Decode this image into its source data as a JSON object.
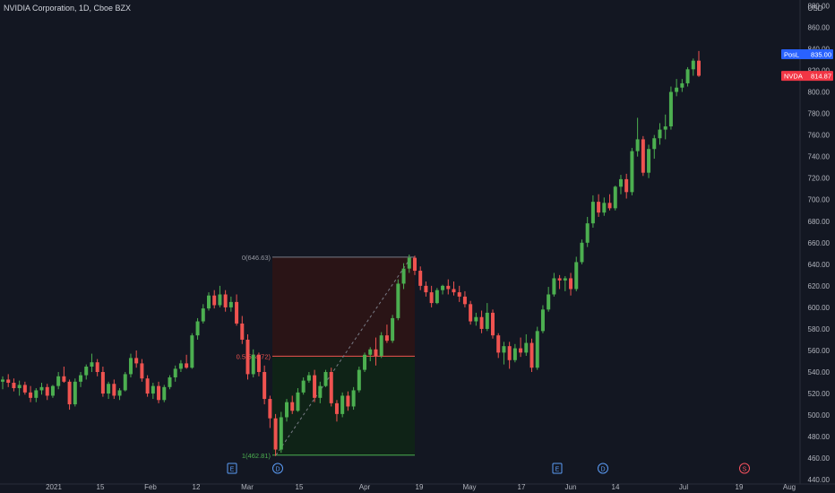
{
  "header": {
    "title": "NVIDIA Corporation, 1D, Cboe BZX",
    "currency": "USD"
  },
  "colors": {
    "background": "#131722",
    "up": "#26a69a",
    "up_body": "#4caf50",
    "down": "#ef5350",
    "text": "#b2b5be",
    "axis_line": "#2a2e39",
    "pos_label": "#2962ff",
    "last_label": "#f23645",
    "fib_line": "#787b86"
  },
  "chart_data": {
    "type": "candlestick",
    "symbol": "NVDA",
    "y_ticks": [
      880,
      860,
      840,
      820,
      800,
      780,
      760,
      740,
      720,
      700,
      680,
      660,
      640,
      620,
      600,
      580,
      560,
      540,
      520,
      500,
      480,
      460,
      440
    ],
    "ylim": [
      436,
      882
    ],
    "x_ticks": [
      "2021",
      "15",
      "Feb",
      "12",
      "Mar",
      "15",
      "Apr",
      "19",
      "May",
      "17",
      "Jun",
      "14",
      "Jul",
      "19",
      "Aug"
    ],
    "price_labels": [
      {
        "label": "PosL",
        "value": 835.0,
        "text": "835.00",
        "color": "#2962ff"
      },
      {
        "label": "NVDA",
        "value": 814.87,
        "text": "814.87",
        "color": "#f23645"
      }
    ],
    "position_tool": {
      "top": {
        "value": 646.63,
        "label": "0(646.63)"
      },
      "mid": {
        "value": 554.72,
        "label": "0.5(554.72)"
      },
      "bottom": {
        "value": 462.81,
        "label": "1(462.81)"
      }
    },
    "event_markers": [
      {
        "symbol": "E",
        "kind": "earnings"
      },
      {
        "symbol": "D",
        "kind": "dividend"
      },
      {
        "symbol": "E",
        "kind": "earnings"
      },
      {
        "symbol": "D",
        "kind": "dividend"
      },
      {
        "symbol": "S",
        "kind": "split"
      }
    ],
    "candles": [
      {
        "o": 531,
        "h": 536,
        "l": 524,
        "c": 533
      },
      {
        "o": 533,
        "h": 538,
        "l": 526,
        "c": 530
      },
      {
        "o": 530,
        "h": 534,
        "l": 522,
        "c": 525
      },
      {
        "o": 525,
        "h": 532,
        "l": 518,
        "c": 528
      },
      {
        "o": 528,
        "h": 531,
        "l": 519,
        "c": 521
      },
      {
        "o": 521,
        "h": 527,
        "l": 512,
        "c": 516
      },
      {
        "o": 516,
        "h": 525,
        "l": 512,
        "c": 523
      },
      {
        "o": 523,
        "h": 530,
        "l": 519,
        "c": 526
      },
      {
        "o": 526,
        "h": 529,
        "l": 514,
        "c": 518
      },
      {
        "o": 518,
        "h": 528,
        "l": 516,
        "c": 527
      },
      {
        "o": 527,
        "h": 540,
        "l": 524,
        "c": 536
      },
      {
        "o": 536,
        "h": 545,
        "l": 530,
        "c": 531
      },
      {
        "o": 531,
        "h": 533,
        "l": 505,
        "c": 510
      },
      {
        "o": 510,
        "h": 534,
        "l": 508,
        "c": 531
      },
      {
        "o": 531,
        "h": 540,
        "l": 526,
        "c": 537
      },
      {
        "o": 537,
        "h": 547,
        "l": 533,
        "c": 545
      },
      {
        "o": 545,
        "h": 557,
        "l": 540,
        "c": 549
      },
      {
        "o": 549,
        "h": 552,
        "l": 536,
        "c": 540
      },
      {
        "o": 540,
        "h": 545,
        "l": 517,
        "c": 520
      },
      {
        "o": 520,
        "h": 531,
        "l": 515,
        "c": 529
      },
      {
        "o": 529,
        "h": 533,
        "l": 515,
        "c": 518
      },
      {
        "o": 518,
        "h": 525,
        "l": 514,
        "c": 523
      },
      {
        "o": 523,
        "h": 540,
        "l": 522,
        "c": 538
      },
      {
        "o": 538,
        "h": 557,
        "l": 535,
        "c": 553
      },
      {
        "o": 553,
        "h": 560,
        "l": 544,
        "c": 548
      },
      {
        "o": 548,
        "h": 552,
        "l": 531,
        "c": 534
      },
      {
        "o": 534,
        "h": 537,
        "l": 517,
        "c": 520
      },
      {
        "o": 520,
        "h": 530,
        "l": 515,
        "c": 527
      },
      {
        "o": 527,
        "h": 531,
        "l": 511,
        "c": 514
      },
      {
        "o": 514,
        "h": 528,
        "l": 512,
        "c": 526
      },
      {
        "o": 526,
        "h": 537,
        "l": 524,
        "c": 535
      },
      {
        "o": 535,
        "h": 546,
        "l": 531,
        "c": 543
      },
      {
        "o": 543,
        "h": 551,
        "l": 540,
        "c": 548
      },
      {
        "o": 548,
        "h": 556,
        "l": 543,
        "c": 544
      },
      {
        "o": 544,
        "h": 576,
        "l": 543,
        "c": 574
      },
      {
        "o": 574,
        "h": 590,
        "l": 570,
        "c": 587
      },
      {
        "o": 587,
        "h": 603,
        "l": 585,
        "c": 599
      },
      {
        "o": 599,
        "h": 614,
        "l": 597,
        "c": 611
      },
      {
        "o": 611,
        "h": 616,
        "l": 599,
        "c": 602
      },
      {
        "o": 602,
        "h": 620,
        "l": 600,
        "c": 612
      },
      {
        "o": 612,
        "h": 616,
        "l": 596,
        "c": 600
      },
      {
        "o": 600,
        "h": 610,
        "l": 596,
        "c": 605
      },
      {
        "o": 605,
        "h": 612,
        "l": 583,
        "c": 585
      },
      {
        "o": 585,
        "h": 592,
        "l": 566,
        "c": 570
      },
      {
        "o": 570,
        "h": 575,
        "l": 533,
        "c": 538
      },
      {
        "o": 538,
        "h": 561,
        "l": 535,
        "c": 556
      },
      {
        "o": 556,
        "h": 558,
        "l": 536,
        "c": 540
      },
      {
        "o": 540,
        "h": 546,
        "l": 510,
        "c": 515
      },
      {
        "o": 515,
        "h": 518,
        "l": 488,
        "c": 497
      },
      {
        "o": 497,
        "h": 501,
        "l": 462,
        "c": 468
      },
      {
        "o": 468,
        "h": 503,
        "l": 465,
        "c": 498
      },
      {
        "o": 498,
        "h": 515,
        "l": 494,
        "c": 512
      },
      {
        "o": 512,
        "h": 518,
        "l": 501,
        "c": 504
      },
      {
        "o": 504,
        "h": 525,
        "l": 503,
        "c": 521
      },
      {
        "o": 521,
        "h": 535,
        "l": 519,
        "c": 532
      },
      {
        "o": 532,
        "h": 540,
        "l": 530,
        "c": 537
      },
      {
        "o": 537,
        "h": 542,
        "l": 512,
        "c": 516
      },
      {
        "o": 516,
        "h": 531,
        "l": 511,
        "c": 527
      },
      {
        "o": 527,
        "h": 542,
        "l": 526,
        "c": 540
      },
      {
        "o": 540,
        "h": 544,
        "l": 508,
        "c": 511
      },
      {
        "o": 511,
        "h": 514,
        "l": 494,
        "c": 501
      },
      {
        "o": 501,
        "h": 521,
        "l": 498,
        "c": 518
      },
      {
        "o": 518,
        "h": 522,
        "l": 504,
        "c": 508
      },
      {
        "o": 508,
        "h": 526,
        "l": 505,
        "c": 523
      },
      {
        "o": 523,
        "h": 545,
        "l": 521,
        "c": 542
      },
      {
        "o": 542,
        "h": 558,
        "l": 540,
        "c": 556
      },
      {
        "o": 556,
        "h": 563,
        "l": 550,
        "c": 561
      },
      {
        "o": 561,
        "h": 572,
        "l": 546,
        "c": 555
      },
      {
        "o": 555,
        "h": 577,
        "l": 553,
        "c": 574
      },
      {
        "o": 574,
        "h": 584,
        "l": 567,
        "c": 569
      },
      {
        "o": 569,
        "h": 593,
        "l": 567,
        "c": 590
      },
      {
        "o": 590,
        "h": 626,
        "l": 588,
        "c": 622
      },
      {
        "o": 622,
        "h": 641,
        "l": 617,
        "c": 636
      },
      {
        "o": 636,
        "h": 649,
        "l": 632,
        "c": 646
      },
      {
        "o": 646,
        "h": 648,
        "l": 630,
        "c": 634
      },
      {
        "o": 634,
        "h": 638,
        "l": 616,
        "c": 620
      },
      {
        "o": 620,
        "h": 624,
        "l": 610,
        "c": 614
      },
      {
        "o": 614,
        "h": 620,
        "l": 600,
        "c": 604
      },
      {
        "o": 604,
        "h": 618,
        "l": 603,
        "c": 616
      },
      {
        "o": 616,
        "h": 621,
        "l": 612,
        "c": 620
      },
      {
        "o": 620,
        "h": 626,
        "l": 612,
        "c": 617
      },
      {
        "o": 617,
        "h": 624,
        "l": 611,
        "c": 614
      },
      {
        "o": 614,
        "h": 620,
        "l": 605,
        "c": 610
      },
      {
        "o": 610,
        "h": 615,
        "l": 600,
        "c": 603
      },
      {
        "o": 603,
        "h": 606,
        "l": 584,
        "c": 587
      },
      {
        "o": 587,
        "h": 595,
        "l": 583,
        "c": 591
      },
      {
        "o": 591,
        "h": 597,
        "l": 576,
        "c": 580
      },
      {
        "o": 580,
        "h": 604,
        "l": 578,
        "c": 595
      },
      {
        "o": 595,
        "h": 598,
        "l": 571,
        "c": 574
      },
      {
        "o": 574,
        "h": 576,
        "l": 553,
        "c": 558
      },
      {
        "o": 558,
        "h": 568,
        "l": 547,
        "c": 564
      },
      {
        "o": 564,
        "h": 568,
        "l": 543,
        "c": 551
      },
      {
        "o": 551,
        "h": 566,
        "l": 549,
        "c": 562
      },
      {
        "o": 562,
        "h": 572,
        "l": 554,
        "c": 558
      },
      {
        "o": 558,
        "h": 575,
        "l": 555,
        "c": 567
      },
      {
        "o": 567,
        "h": 571,
        "l": 540,
        "c": 544
      },
      {
        "o": 544,
        "h": 582,
        "l": 542,
        "c": 578
      },
      {
        "o": 578,
        "h": 602,
        "l": 576,
        "c": 598
      },
      {
        "o": 598,
        "h": 619,
        "l": 596,
        "c": 612
      },
      {
        "o": 612,
        "h": 632,
        "l": 610,
        "c": 627
      },
      {
        "o": 627,
        "h": 630,
        "l": 617,
        "c": 625
      },
      {
        "o": 625,
        "h": 629,
        "l": 615,
        "c": 627
      },
      {
        "o": 627,
        "h": 632,
        "l": 611,
        "c": 617
      },
      {
        "o": 617,
        "h": 647,
        "l": 615,
        "c": 642
      },
      {
        "o": 642,
        "h": 663,
        "l": 640,
        "c": 660
      },
      {
        "o": 660,
        "h": 684,
        "l": 656,
        "c": 678
      },
      {
        "o": 678,
        "h": 704,
        "l": 674,
        "c": 698
      },
      {
        "o": 698,
        "h": 705,
        "l": 684,
        "c": 688
      },
      {
        "o": 688,
        "h": 702,
        "l": 685,
        "c": 697
      },
      {
        "o": 697,
        "h": 705,
        "l": 690,
        "c": 692
      },
      {
        "o": 692,
        "h": 713,
        "l": 690,
        "c": 712
      },
      {
        "o": 712,
        "h": 723,
        "l": 705,
        "c": 719
      },
      {
        "o": 719,
        "h": 724,
        "l": 701,
        "c": 707
      },
      {
        "o": 707,
        "h": 748,
        "l": 704,
        "c": 745
      },
      {
        "o": 745,
        "h": 776,
        "l": 740,
        "c": 756
      },
      {
        "o": 756,
        "h": 759,
        "l": 722,
        "c": 725
      },
      {
        "o": 725,
        "h": 751,
        "l": 720,
        "c": 747
      },
      {
        "o": 747,
        "h": 760,
        "l": 738,
        "c": 757
      },
      {
        "o": 757,
        "h": 771,
        "l": 751,
        "c": 765
      },
      {
        "o": 765,
        "h": 779,
        "l": 756,
        "c": 768
      },
      {
        "o": 768,
        "h": 805,
        "l": 765,
        "c": 800
      },
      {
        "o": 800,
        "h": 812,
        "l": 796,
        "c": 804
      },
      {
        "o": 804,
        "h": 812,
        "l": 800,
        "c": 808
      },
      {
        "o": 808,
        "h": 823,
        "l": 805,
        "c": 821
      },
      {
        "o": 821,
        "h": 831,
        "l": 815,
        "c": 829
      },
      {
        "o": 829,
        "h": 838,
        "l": 814,
        "c": 815
      }
    ]
  }
}
